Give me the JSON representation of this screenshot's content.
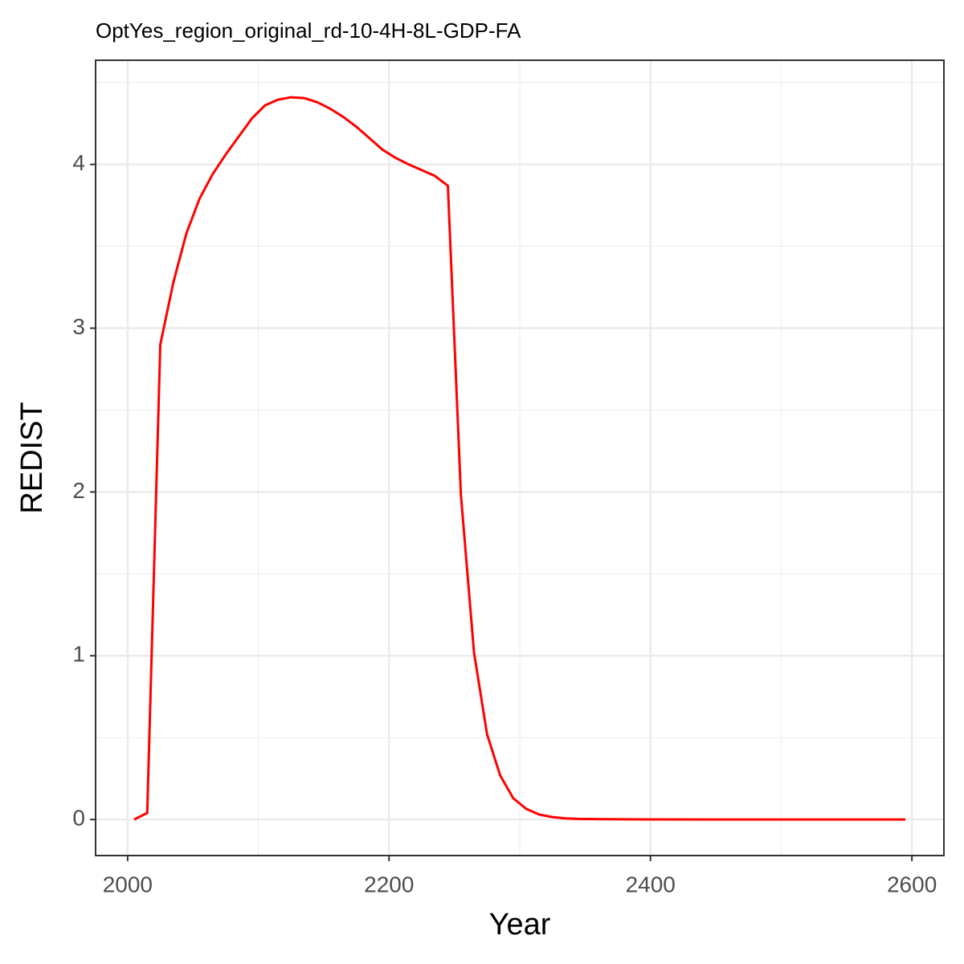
{
  "chart_data": {
    "type": "line",
    "title": "OptYes_region_original_rd-10-4H-8L-GDP-FA",
    "x_label": "Year",
    "y_label": "REDIST",
    "x": [
      2005,
      2015,
      2025,
      2035,
      2045,
      2055,
      2065,
      2075,
      2085,
      2095,
      2105,
      2115,
      2125,
      2135,
      2145,
      2155,
      2165,
      2175,
      2185,
      2195,
      2205,
      2215,
      2225,
      2235,
      2245,
      2255,
      2265,
      2275,
      2285,
      2295,
      2305,
      2315,
      2325,
      2335,
      2345,
      2365,
      2395,
      2445,
      2495,
      2545,
      2595
    ],
    "series": [
      {
        "name": "REDIST",
        "color": "#ff0000",
        "values": [
          0,
          0.04,
          2.9,
          3.28,
          3.58,
          3.79,
          3.94,
          4.06,
          4.17,
          4.28,
          4.36,
          4.395,
          4.41,
          4.405,
          4.38,
          4.34,
          4.29,
          4.23,
          4.16,
          4.09,
          4.04,
          4.0,
          3.965,
          3.93,
          3.87,
          1.98,
          1.02,
          0.52,
          0.27,
          0.13,
          0.065,
          0.03,
          0.015,
          0.007,
          0.004,
          0.002,
          0.001,
          0,
          0,
          0,
          0
        ]
      }
    ],
    "xlim": [
      1975.5,
      2624.5
    ],
    "xticks": [
      2000,
      2200,
      2400,
      2600
    ],
    "ylim": [
      -0.22,
      4.636
    ],
    "yticks": [
      0,
      1,
      2,
      3,
      4
    ],
    "grid": true
  }
}
